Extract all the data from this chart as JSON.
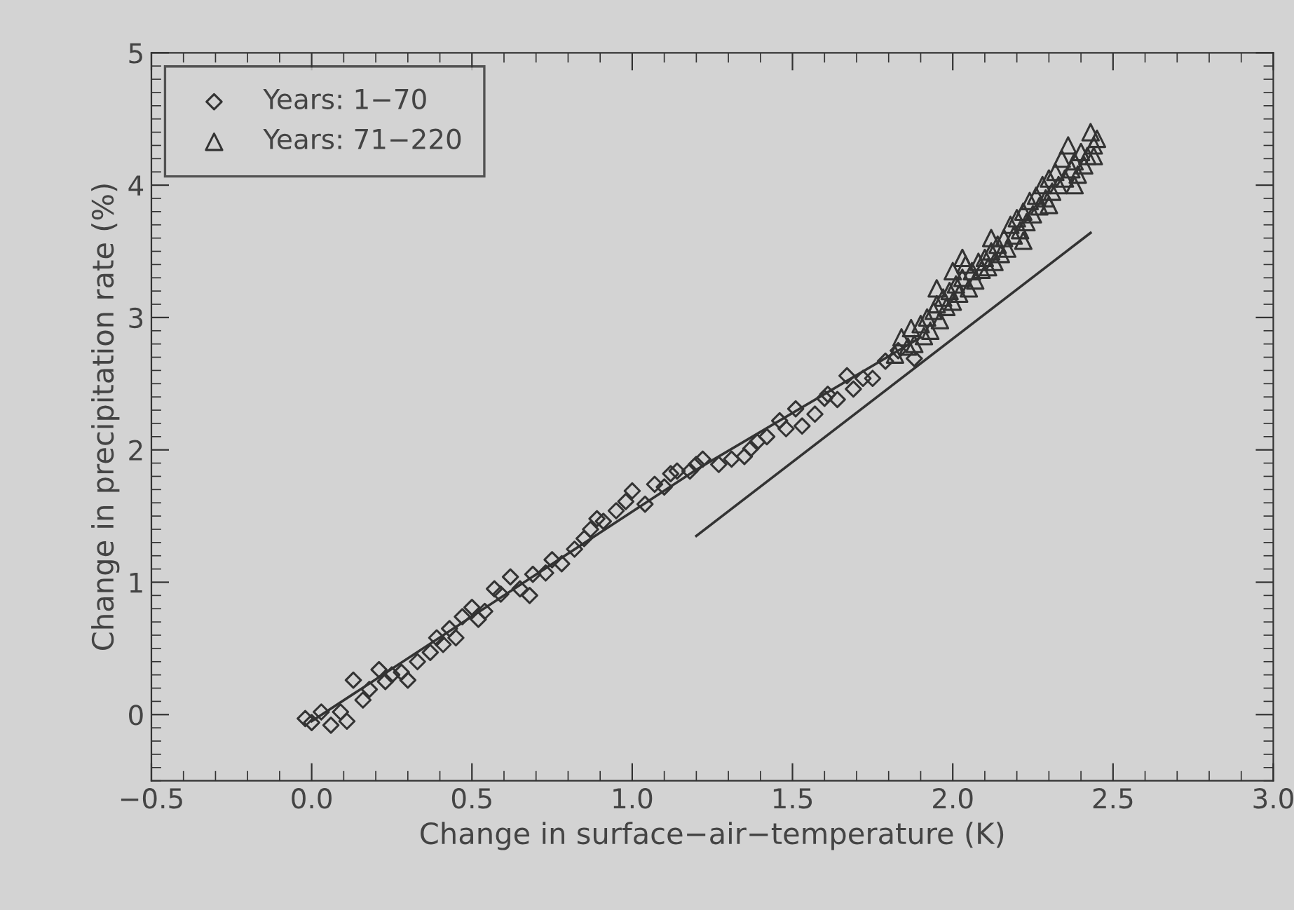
{
  "chart_data": {
    "type": "scatter",
    "xlabel": "Change in surface−air−temperature (K)",
    "ylabel": "Change in precipitation rate (%)",
    "xlim": [
      -0.5,
      3.0
    ],
    "ylim": [
      -0.5,
      5
    ],
    "xticks": [
      {
        "value": -0.5,
        "label": "−0.5"
      },
      {
        "value": 0,
        "label": "0.0"
      },
      {
        "value": 0.5,
        "label": "0.5"
      },
      {
        "value": 1.0,
        "label": "1.0"
      },
      {
        "value": 1.5,
        "label": "1.5"
      },
      {
        "value": 2.0,
        "label": "2.0"
      },
      {
        "value": 2.5,
        "label": "2.5"
      },
      {
        "value": 3.0,
        "label": "3.0"
      }
    ],
    "yticks": [
      0,
      1,
      2,
      3,
      4,
      5
    ],
    "grid": false,
    "legend": "top left",
    "series": [
      {
        "name": "Years: 1−70",
        "marker": "diamond",
        "color": "#333333",
        "x": [
          -0.02,
          0,
          0.03,
          0.06,
          0.09,
          0.11,
          0.13,
          0.16,
          0.18,
          0.21,
          0.23,
          0.25,
          0.28,
          0.3,
          0.33,
          0.37,
          0.39,
          0.41,
          0.43,
          0.45,
          0.47,
          0.5,
          0.52,
          0.54,
          0.57,
          0.59,
          0.62,
          0.65,
          0.68,
          0.69,
          0.73,
          0.75,
          0.78,
          0.82,
          0.85,
          0.87,
          0.89,
          0.91,
          0.95,
          0.98,
          1.0,
          1.04,
          1.07,
          1.1,
          1.12,
          1.14,
          1.18,
          1.2,
          1.22,
          1.27,
          1.31,
          1.35,
          1.37,
          1.39,
          1.42,
          1.46,
          1.48,
          1.51,
          1.53,
          1.57,
          1.6,
          1.61,
          1.64,
          1.67,
          1.69,
          1.72,
          1.75,
          1.79,
          1.83,
          1.88
        ],
        "values": [
          -0.03,
          -0.06,
          0.02,
          -0.08,
          0.02,
          -0.05,
          0.26,
          0.11,
          0.19,
          0.34,
          0.25,
          0.3,
          0.32,
          0.26,
          0.4,
          0.47,
          0.58,
          0.53,
          0.65,
          0.58,
          0.74,
          0.81,
          0.72,
          0.78,
          0.95,
          0.91,
          1.04,
          0.95,
          0.9,
          1.06,
          1.07,
          1.17,
          1.14,
          1.25,
          1.33,
          1.4,
          1.48,
          1.46,
          1.54,
          1.61,
          1.69,
          1.59,
          1.74,
          1.72,
          1.82,
          1.84,
          1.84,
          1.89,
          1.93,
          1.89,
          1.93,
          1.95,
          2.01,
          2.06,
          2.1,
          2.22,
          2.16,
          2.31,
          2.18,
          2.27,
          2.39,
          2.42,
          2.38,
          2.56,
          2.46,
          2.54,
          2.54,
          2.67,
          2.75,
          2.69
        ]
      },
      {
        "name": "Years: 71−220",
        "marker": "triangle",
        "color": "#333333",
        "x": [
          1.82,
          1.84,
          1.86,
          1.87,
          1.88,
          1.9,
          1.91,
          1.92,
          1.93,
          1.94,
          1.95,
          1.96,
          1.97,
          1.98,
          1.99,
          2.0,
          2.0,
          2.01,
          2.02,
          2.03,
          2.04,
          2.05,
          2.06,
          2.07,
          2.08,
          2.09,
          2.1,
          2.11,
          2.12,
          2.13,
          2.14,
          2.15,
          2.16,
          2.17,
          2.18,
          2.19,
          2.2,
          2.21,
          2.22,
          2.23,
          2.24,
          2.25,
          2.26,
          2.27,
          2.28,
          2.29,
          2.3,
          2.31,
          2.32,
          2.33,
          2.34,
          2.35,
          2.36,
          2.37,
          2.38,
          2.39,
          2.4,
          2.41,
          2.42,
          2.43,
          2.44,
          2.45,
          2.44,
          2.12,
          2.03,
          1.95,
          2.22,
          2.3,
          2.38
        ],
        "values": [
          2.72,
          2.85,
          2.78,
          2.92,
          2.8,
          2.95,
          2.86,
          3.0,
          2.9,
          3.05,
          3.1,
          2.98,
          3.15,
          3.08,
          3.2,
          3.12,
          3.35,
          3.25,
          3.18,
          3.3,
          3.4,
          3.22,
          3.35,
          3.28,
          3.42,
          3.36,
          3.45,
          3.38,
          3.5,
          3.42,
          3.55,
          3.48,
          3.6,
          3.52,
          3.7,
          3.62,
          3.75,
          3.66,
          3.8,
          3.72,
          3.88,
          3.78,
          3.92,
          3.84,
          4.0,
          3.9,
          4.05,
          3.95,
          4.1,
          4.0,
          4.2,
          4.05,
          4.3,
          4.12,
          4.18,
          4.08,
          4.25,
          4.15,
          4.22,
          4.4,
          4.3,
          4.35,
          4.22,
          3.6,
          3.45,
          3.22,
          3.58,
          3.85,
          4.0
        ]
      },
      {
        "type": "line",
        "color": "#333333",
        "marker": "none",
        "line_style": "solid",
        "x": [
          0,
          1.2,
          1.9
        ],
        "values": [
          -0.05,
          1.85,
          2.85
        ]
      },
      {
        "type": "line",
        "color": "#333333",
        "marker": "none",
        "line_style": "solid",
        "x": [
          1.2,
          2.43
        ],
        "values": [
          1.35,
          3.64
        ]
      }
    ]
  }
}
